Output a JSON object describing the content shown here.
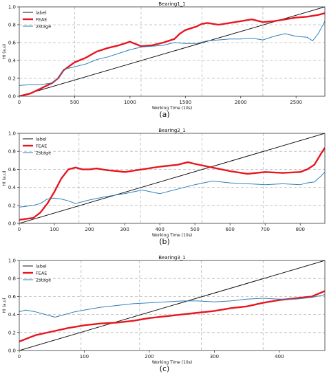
{
  "chart_data": [
    {
      "type": "line",
      "title": "Bearing1_1",
      "xlabel": "Working Time (10s)",
      "ylabel": "HI (a.u)",
      "caption": "(a)",
      "xlim": [
        0,
        2760
      ],
      "ylim": [
        0,
        1.0
      ],
      "xticks": [
        0,
        500,
        1000,
        1500,
        2000,
        2500
      ],
      "yticks": [
        0,
        0.2,
        0.4,
        0.6,
        0.8,
        1.0
      ],
      "vgrid": [
        500,
        1100,
        1650,
        2200
      ],
      "grid": true,
      "legend_position": "top-left",
      "series": [
        {
          "name": "label",
          "color": "#111111",
          "width": 1,
          "x": [
            0,
            2760
          ],
          "y": [
            0,
            1.0
          ]
        },
        {
          "name": "FEAE",
          "color": "#e8141e",
          "width": 2.4,
          "x": [
            0,
            100,
            200,
            300,
            350,
            400,
            500,
            600,
            700,
            800,
            900,
            1000,
            1100,
            1200,
            1300,
            1400,
            1450,
            1500,
            1550,
            1600,
            1650,
            1700,
            1800,
            1900,
            2000,
            2100,
            2200,
            2300,
            2400,
            2500,
            2600,
            2700,
            2760
          ],
          "y": [
            0.0,
            0.03,
            0.09,
            0.15,
            0.2,
            0.29,
            0.38,
            0.43,
            0.5,
            0.54,
            0.57,
            0.61,
            0.56,
            0.57,
            0.6,
            0.64,
            0.7,
            0.74,
            0.76,
            0.78,
            0.81,
            0.82,
            0.8,
            0.82,
            0.84,
            0.86,
            0.83,
            0.84,
            0.86,
            0.88,
            0.89,
            0.91,
            0.93
          ]
        },
        {
          "name": "2stage",
          "color": "#2e7fb8",
          "width": 1,
          "x": [
            0,
            100,
            200,
            300,
            350,
            400,
            500,
            600,
            700,
            800,
            900,
            1000,
            1100,
            1200,
            1300,
            1400,
            1500,
            1600,
            1700,
            1800,
            1900,
            2000,
            2100,
            2200,
            2300,
            2400,
            2500,
            2600,
            2650,
            2700,
            2760
          ],
          "y": [
            0.12,
            0.13,
            0.13,
            0.15,
            0.2,
            0.3,
            0.33,
            0.36,
            0.41,
            0.44,
            0.48,
            0.52,
            0.55,
            0.56,
            0.57,
            0.6,
            0.59,
            0.59,
            0.62,
            0.63,
            0.64,
            0.64,
            0.65,
            0.63,
            0.67,
            0.7,
            0.67,
            0.66,
            0.62,
            0.7,
            0.84
          ]
        }
      ]
    },
    {
      "type": "line",
      "title": "Bearing2_1",
      "xlabel": "Working Time (10s)",
      "ylabel": "HI (a.u)",
      "caption": "(b)",
      "xlim": [
        0,
        870
      ],
      "ylim": [
        0,
        1.0
      ],
      "xticks": [
        0,
        100,
        200,
        300,
        400,
        500,
        600,
        700,
        800
      ],
      "yticks": [
        0,
        0.2,
        0.4,
        0.6,
        0.8,
        1.0
      ],
      "vgrid": [
        170,
        345,
        520,
        695
      ],
      "grid": true,
      "legend_position": "top-left",
      "series": [
        {
          "name": "label",
          "color": "#111111",
          "width": 1,
          "x": [
            0,
            870
          ],
          "y": [
            0,
            1.0
          ]
        },
        {
          "name": "FEAE",
          "color": "#e8141e",
          "width": 2.4,
          "x": [
            0,
            20,
            40,
            60,
            80,
            100,
            120,
            140,
            160,
            180,
            200,
            220,
            250,
            280,
            300,
            350,
            400,
            450,
            480,
            500,
            550,
            600,
            650,
            700,
            750,
            800,
            820,
            840,
            860,
            870
          ],
          "y": [
            0.04,
            0.05,
            0.06,
            0.12,
            0.22,
            0.35,
            0.5,
            0.6,
            0.62,
            0.6,
            0.6,
            0.61,
            0.59,
            0.58,
            0.57,
            0.6,
            0.63,
            0.65,
            0.68,
            0.66,
            0.62,
            0.58,
            0.55,
            0.57,
            0.56,
            0.57,
            0.6,
            0.65,
            0.78,
            0.84
          ]
        },
        {
          "name": "2stage",
          "color": "#2e7fb8",
          "width": 1,
          "x": [
            0,
            20,
            40,
            60,
            80,
            100,
            120,
            140,
            160,
            200,
            250,
            300,
            350,
            400,
            450,
            500,
            550,
            600,
            650,
            700,
            750,
            800,
            820,
            840,
            860,
            870
          ],
          "y": [
            0.18,
            0.19,
            0.2,
            0.22,
            0.27,
            0.28,
            0.27,
            0.25,
            0.22,
            0.26,
            0.3,
            0.33,
            0.37,
            0.33,
            0.38,
            0.43,
            0.47,
            0.45,
            0.44,
            0.43,
            0.44,
            0.43,
            0.45,
            0.46,
            0.53,
            0.57
          ]
        }
      ]
    },
    {
      "type": "line",
      "title": "Bearing3_1",
      "xlabel": "Working Time (10s)",
      "ylabel": "HI (a.u)",
      "caption": "(c)",
      "xlim": [
        0,
        470
      ],
      "ylim": [
        0,
        1.0
      ],
      "xticks": [
        0,
        100,
        200,
        300,
        400
      ],
      "yticks": [
        0,
        0.2,
        0.4,
        0.6,
        0.8,
        1.0
      ],
      "vgrid": [
        95,
        185,
        280,
        375
      ],
      "grid": true,
      "legend_position": "top-left",
      "series": [
        {
          "name": "label",
          "color": "#111111",
          "width": 1,
          "x": [
            0,
            470
          ],
          "y": [
            0,
            1.0
          ]
        },
        {
          "name": "FEAE",
          "color": "#e8141e",
          "width": 2.4,
          "x": [
            0,
            25,
            50,
            75,
            100,
            125,
            150,
            175,
            200,
            225,
            250,
            275,
            300,
            325,
            350,
            375,
            400,
            425,
            450,
            470
          ],
          "y": [
            0.1,
            0.17,
            0.21,
            0.25,
            0.28,
            0.3,
            0.31,
            0.33,
            0.36,
            0.38,
            0.4,
            0.42,
            0.44,
            0.47,
            0.49,
            0.53,
            0.56,
            0.58,
            0.6,
            0.66
          ]
        },
        {
          "name": "2stage",
          "color": "#2e7fb8",
          "width": 1,
          "x": [
            0,
            10,
            25,
            40,
            55,
            70,
            85,
            100,
            125,
            150,
            175,
            200,
            225,
            250,
            275,
            300,
            325,
            350,
            375,
            400,
            425,
            450,
            470
          ],
          "y": [
            0.43,
            0.45,
            0.43,
            0.4,
            0.37,
            0.4,
            0.43,
            0.45,
            0.48,
            0.5,
            0.52,
            0.53,
            0.54,
            0.55,
            0.55,
            0.54,
            0.55,
            0.57,
            0.58,
            0.57,
            0.57,
            0.59,
            0.62
          ]
        }
      ]
    }
  ]
}
